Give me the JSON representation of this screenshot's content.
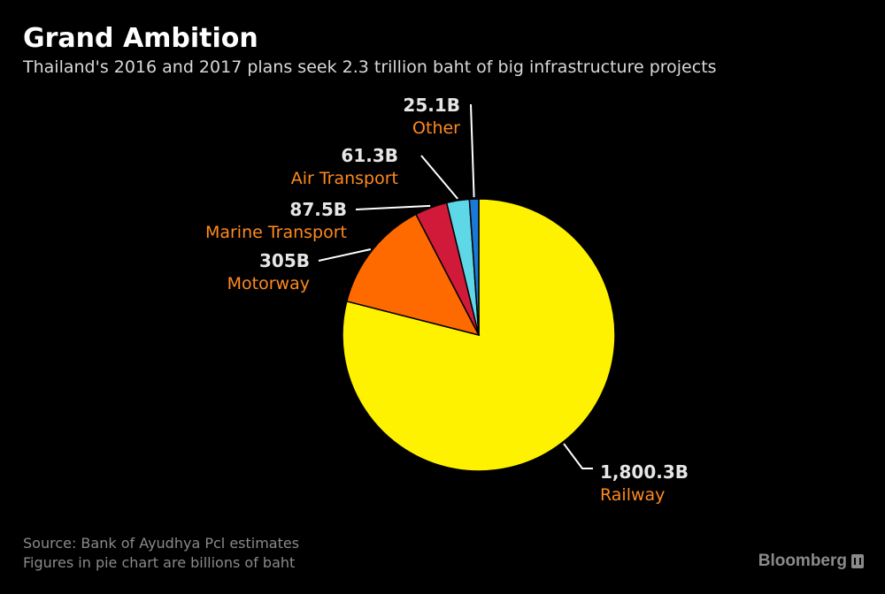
{
  "header": {
    "title": "Grand Ambition",
    "subtitle": "Thailand's 2016 and 2017 plans seek 2.3 trillion baht of big infrastructure projects"
  },
  "footer": {
    "source_line1": "Source:  Bank of Ayudhya Pcl estimates",
    "source_line2": "Figures in pie chart are billions of baht",
    "brand": "Bloomberg",
    "brand_icon": "bloomberg-logo-icon"
  },
  "colors": {
    "background": "#000000",
    "category_label": "#ff8a1f",
    "value_label": "#e6e6e6"
  },
  "chart_data": {
    "type": "pie",
    "title": "Grand Ambition",
    "subtitle": "Thailand's 2016 and 2017 plans seek 2.3 trillion baht of big infrastructure projects",
    "unit": "billions of baht",
    "start": "12 o'clock, clockwise",
    "slices": [
      {
        "name": "Railway",
        "value": 1800.3,
        "display": "1,800.3B",
        "color": "#fff200"
      },
      {
        "name": "Motorway",
        "value": 305,
        "display": "305B",
        "color": "#ff6a00"
      },
      {
        "name": "Marine Transport",
        "value": 87.5,
        "display": "87.5B",
        "color": "#d11a3a"
      },
      {
        "name": "Air Transport",
        "value": 61.3,
        "display": "61.3B",
        "color": "#5ed8e6"
      },
      {
        "name": "Other",
        "value": 25.1,
        "display": "25.1B",
        "color": "#1a78d6"
      }
    ]
  }
}
